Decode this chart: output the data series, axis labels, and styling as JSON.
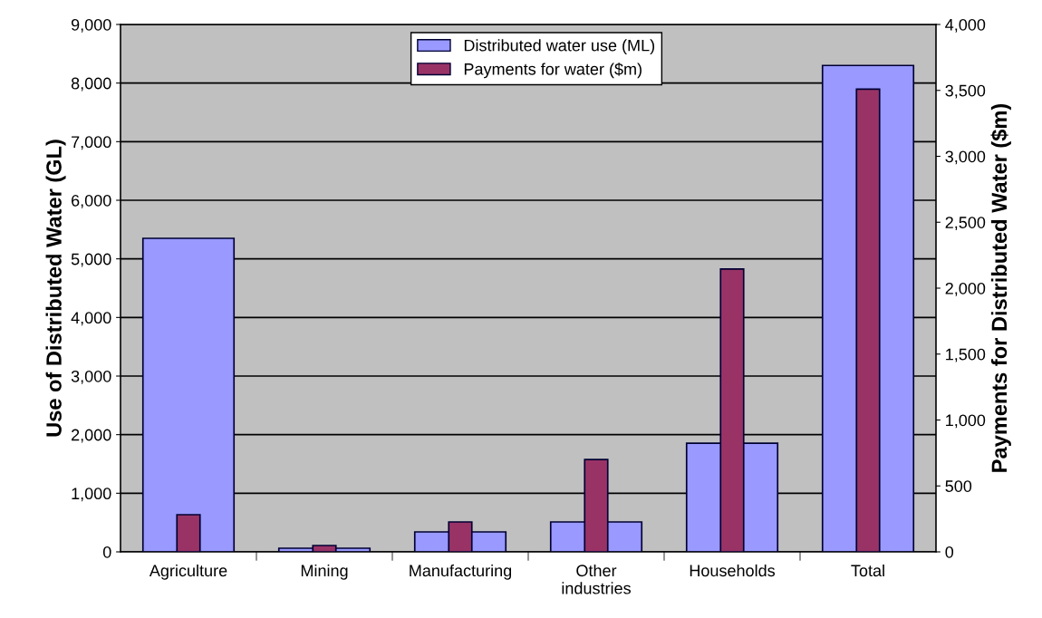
{
  "chart_data": {
    "type": "bar",
    "ylabel": "Use of Distributed Water (GL)",
    "y2label": "Payments for Distributed Water ($m)",
    "categories": [
      "Agriculture",
      "Mining",
      "Manufacturing",
      "Other\nindustries",
      "Households",
      "Total"
    ],
    "series": [
      {
        "name": "Distributed water use (ML)",
        "color": "#9999ff",
        "values": [
          5350,
          62,
          340,
          510,
          1855,
          8300
        ]
      },
      {
        "name": "Payments for water ($m)",
        "color": "#993366",
        "axis": "y2",
        "values": [
          282,
          48,
          227,
          700,
          2145,
          3510
        ]
      }
    ],
    "ylim": [
      0,
      9000
    ],
    "yticks": [
      {
        "value": 0,
        "label": "0"
      },
      {
        "value": 1000,
        "label": "1,000"
      },
      {
        "value": 2000,
        "label": "2,000"
      },
      {
        "value": 3000,
        "label": "3,000"
      },
      {
        "value": 4000,
        "label": "4,000"
      },
      {
        "value": 5000,
        "label": "5,000"
      },
      {
        "value": 6000,
        "label": "6,000"
      },
      {
        "value": 7000,
        "label": "7,000"
      },
      {
        "value": 8000,
        "label": "8,000"
      },
      {
        "value": 9000,
        "label": "9,000"
      }
    ],
    "y2lim": [
      0,
      4000
    ],
    "y2ticks": [
      0,
      500,
      {
        "value": 1000,
        "label": "1,000"
      },
      {
        "value": 1500,
        "label": "1,500"
      },
      {
        "value": 2000,
        "label": "2,000"
      },
      {
        "value": 2500,
        "label": "2,500"
      },
      {
        "value": 3000,
        "label": "3,000"
      },
      {
        "value": 3500,
        "label": "3,500"
      },
      {
        "value": 4000,
        "label": "4,000"
      }
    ],
    "grid": "y",
    "legend": "top"
  }
}
